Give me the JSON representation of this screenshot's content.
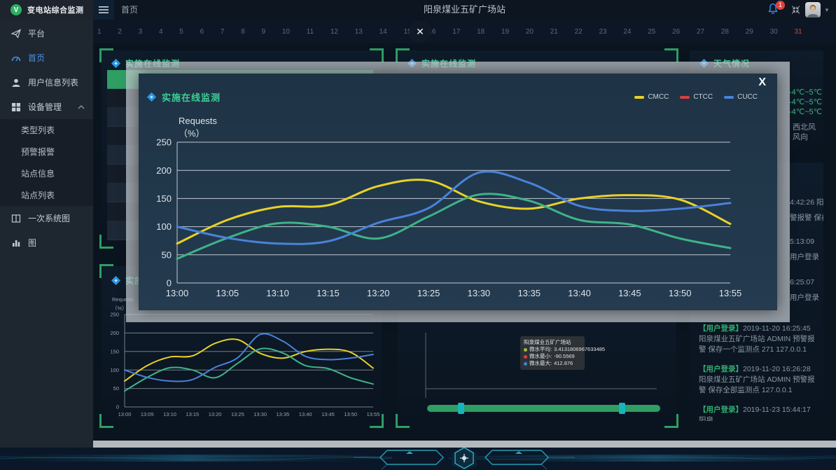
{
  "header": {
    "logo_text": "变电站综合监测",
    "nav_home": "首页",
    "station_title": "阳泉煤业五矿广场站",
    "bell_badge": "1"
  },
  "calendar": {
    "days": [
      "1",
      "2",
      "3",
      "4",
      "5",
      "6",
      "7",
      "8",
      "9",
      "10",
      "11",
      "12",
      "13",
      "14",
      "15",
      "16",
      "17",
      "18",
      "19",
      "20",
      "21",
      "22",
      "23",
      "24",
      "25",
      "26",
      "27",
      "28",
      "29",
      "30",
      "31"
    ],
    "highlight_day": "31",
    "close_label": "✕"
  },
  "sidebar": {
    "items": {
      "platform": "平台",
      "home": "首页",
      "user_info_list": "用户信息列表",
      "device_mgmt": "设备管理",
      "primary_system_diagram": "一次系统图",
      "chart": "图"
    },
    "submenu": [
      "类型列表",
      "预警报警",
      "站点信息",
      "站点列表"
    ]
  },
  "panels": {
    "monitor_left": {
      "title": "实施在线监测"
    },
    "monitor_mid": {
      "title": "实施在线监测"
    },
    "weather": {
      "title": "天气情况",
      "temps": [
        "-4℃~5℃",
        "-4℃~5℃",
        "-4℃~5℃"
      ],
      "wind_value": "西北风",
      "wind_label": "风向"
    },
    "logs": {
      "fragments": [
        {
          "l1": "4:42:26 阳",
          "l2": "警报警 保存"
        },
        {
          "l1": "5:13:09",
          "l2": "用户登录"
        },
        {
          "l1": "6:25:07",
          "l2": "用户登录"
        }
      ],
      "entries": [
        {
          "tag": "【用户登录】",
          "text": "2019-11-20 16:25:45 阳泉煤业五矿广场站 ADMIN 预警报警 保存一个监测点 271 127.0.0.1"
        },
        {
          "tag": "【用户登录】",
          "text": "2019-11-20 16:26:28 阳泉煤业五矿广场站 ADMIN 预警报警 保存全部监测点  127.0.0.1"
        },
        {
          "tag": "【用户登录】",
          "text": "2019-11-23 15:44:17 阳泉"
        }
      ]
    },
    "mini_chart": {
      "title": "实施在线监测"
    },
    "station_stats": {
      "tooltip": {
        "title": "阳泉煤业五矿广场站",
        "rows": [
          {
            "color": "#9dbf3a",
            "label": "微水平均:",
            "value": "3.4131806967633485"
          },
          {
            "color": "#d9403e",
            "label": "微水最小:",
            "value": "-90.5569"
          },
          {
            "color": "#3a84d9",
            "label": "微水最大:",
            "value": "412.876"
          }
        ]
      }
    }
  },
  "modal": {
    "title": "实施在线监测",
    "close_label": "X"
  },
  "chart_data": {
    "type": "line",
    "title": "实施在线监测",
    "x": [
      "13:00",
      "13:05",
      "13:10",
      "13:15",
      "13:20",
      "13:25",
      "13:30",
      "13:35",
      "13:40",
      "13:45",
      "13:50",
      "13:55"
    ],
    "ylabel_lines": [
      "Requests",
      "（%）"
    ],
    "ylim": [
      0,
      250
    ],
    "yticks": [
      0,
      50,
      100,
      150,
      200,
      250
    ],
    "grid": true,
    "legend_position": "top-right",
    "series": [
      {
        "name": "CMCC",
        "color": "#e8d226",
        "legend_color": "#e8d226",
        "values": [
          70,
          112,
          135,
          138,
          172,
          182,
          145,
          132,
          150,
          156,
          148,
          105
        ]
      },
      {
        "name": "CTCC",
        "color": "#3eb388",
        "legend_color": "#d9403e",
        "values": [
          43,
          80,
          106,
          100,
          79,
          118,
          157,
          146,
          112,
          104,
          79,
          62
        ]
      },
      {
        "name": "CUCC",
        "color": "#4a82d9",
        "legend_color": "#4a82d9",
        "values": [
          100,
          80,
          70,
          74,
          107,
          133,
          196,
          178,
          137,
          128,
          132,
          142
        ]
      }
    ]
  }
}
